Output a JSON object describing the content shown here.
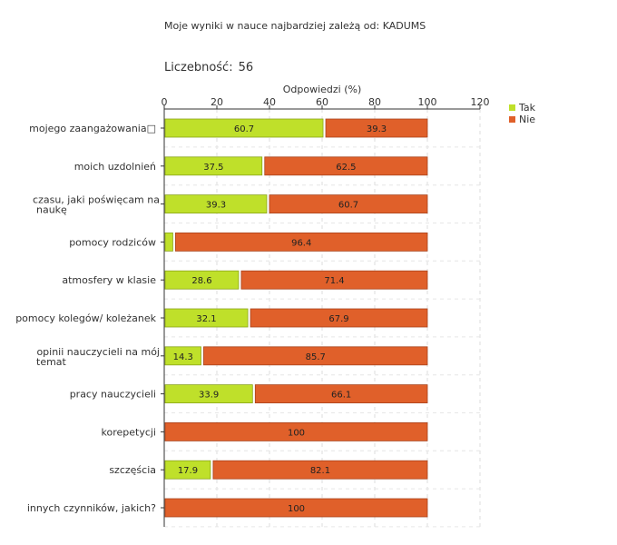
{
  "header": {
    "title": "Moje wyniki w nauce najbardziej zależą od: KADUMS",
    "count_label": "Liczebność:",
    "count_value": "56"
  },
  "chart_data": {
    "type": "bar",
    "orientation": "horizontal",
    "stacked": true,
    "xlabel": "Odpowiedzi (%)",
    "xlim": [
      0,
      120
    ],
    "xticks": [
      0,
      20,
      40,
      60,
      80,
      100,
      120
    ],
    "grid": true,
    "legend_position": "top-right",
    "categories": [
      "mojego zaangażowania□",
      "moich uzdolnień",
      "czasu, jaki poświęcam na naukę",
      "pomocy rodziców",
      "atmosfery w klasie",
      "pomocy kolegów/ koleżanek",
      "opinii nauczycieli na mój temat",
      "pracy nauczycieli",
      "korepetycji",
      "szczęścia",
      "innych czynników, jakich?"
    ],
    "series": [
      {
        "name": "Tak",
        "color": "#bfe02a",
        "values": [
          60.7,
          37.5,
          39.3,
          3.6,
          28.6,
          32.1,
          14.3,
          33.9,
          0,
          17.9,
          0
        ],
        "labels": [
          "60.7",
          "37.5",
          "39.3",
          "",
          "28.6",
          "32.1",
          "14.3",
          "33.9",
          "",
          "17.9",
          ""
        ]
      },
      {
        "name": "Nie",
        "color": "#e0602a",
        "values": [
          39.3,
          62.5,
          60.7,
          96.4,
          71.4,
          67.9,
          85.7,
          66.1,
          100,
          82.1,
          100
        ],
        "labels": [
          "39.3",
          "62.5",
          "60.7",
          "96.4",
          "71.4",
          "67.9",
          "85.7",
          "66.1",
          "100",
          "82.1",
          "100"
        ]
      }
    ]
  }
}
